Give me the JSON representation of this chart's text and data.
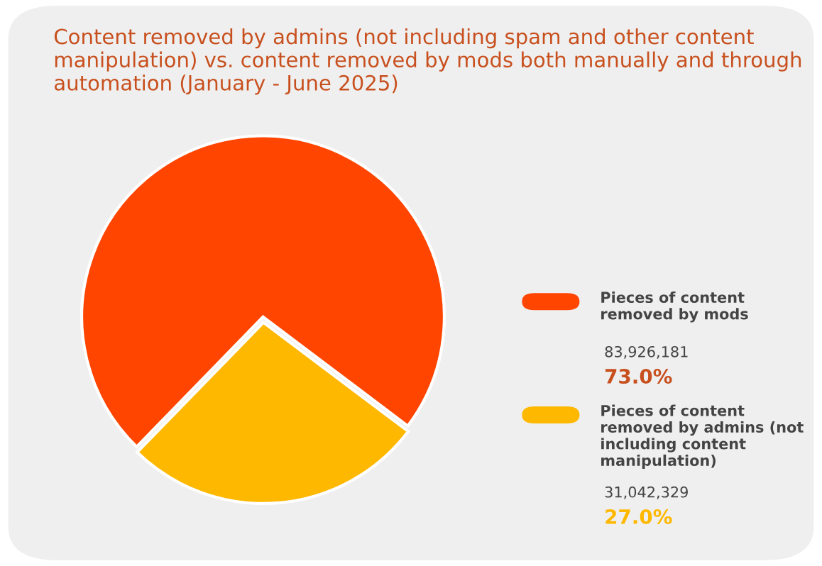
{
  "chart_data": {
    "type": "pie",
    "title": "Content removed by admins (not including spam and other content manipulation) vs. content removed by mods both manually and through automation (January - June 2025)",
    "categories": [
      "Pieces of content removed by mods",
      "Pieces of content removed by admins (not including content manipulation)"
    ],
    "values": [
      73.0,
      27.0
    ],
    "annotations": [
      "83,926,181",
      "73.0%",
      "31,042,329",
      "27.0%"
    ],
    "colors": [
      "#ff4500",
      "#ffb800"
    ],
    "legend": "right"
  }
}
